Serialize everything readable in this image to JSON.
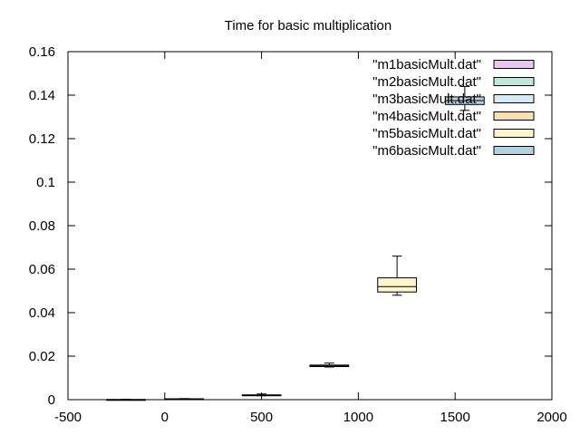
{
  "chart_data": {
    "type": "box",
    "title": "Time  for basic multiplication",
    "xlabel": "",
    "ylabel": "",
    "xlim": [
      -500,
      2000
    ],
    "ylim": [
      0,
      0.16
    ],
    "x_ticks": [
      -500,
      0,
      500,
      1000,
      1500,
      2000
    ],
    "x_tick_labels": [
      "-500",
      "0",
      "500",
      "1000",
      "1500",
      "2000"
    ],
    "y_ticks": [
      0,
      0.02,
      0.04,
      0.06,
      0.08,
      0.1,
      0.12,
      0.14,
      0.16
    ],
    "y_tick_labels": [
      "0",
      "0.02",
      "0.04",
      "0.06",
      "0.08",
      "0.1",
      "0.12",
      "0.14",
      "0.16"
    ],
    "legend_position": "top-right",
    "series": [
      {
        "name": "\"m1basicMult.dat\"",
        "color": "#e8c8f0",
        "x": -200,
        "width": 200,
        "min": 0.0,
        "q1": 0.0,
        "median": 0.0,
        "q3": 0.0001,
        "max": 0.0002
      },
      {
        "name": "\"m2basicMult.dat\"",
        "color": "#c2e6dc",
        "x": 100,
        "width": 200,
        "min": 0.0001,
        "q1": 0.0002,
        "median": 0.0003,
        "q3": 0.0004,
        "max": 0.0005
      },
      {
        "name": "\"m3basicMult.dat\"",
        "color": "#d4eaf4",
        "x": 500,
        "width": 200,
        "min": 0.0018,
        "q1": 0.0019,
        "median": 0.002,
        "q3": 0.0022,
        "max": 0.0026
      },
      {
        "name": "\"m4basicMult.dat\"",
        "color": "#f8e0b4",
        "x": 850,
        "width": 200,
        "min": 0.015,
        "q1": 0.0152,
        "median": 0.0155,
        "q3": 0.0159,
        "max": 0.0168
      },
      {
        "name": "\"m5basicMult.dat\"",
        "color": "#fdf6c8",
        "x": 1200,
        "width": 200,
        "min": 0.048,
        "q1": 0.0495,
        "median": 0.052,
        "q3": 0.056,
        "max": 0.066
      },
      {
        "name": "\"m6basicMult.dat\"",
        "color": "#b8cfe0",
        "x": 1550,
        "width": 200,
        "min": 0.133,
        "q1": 0.1357,
        "median": 0.1375,
        "q3": 0.1392,
        "max": 0.144
      }
    ]
  }
}
